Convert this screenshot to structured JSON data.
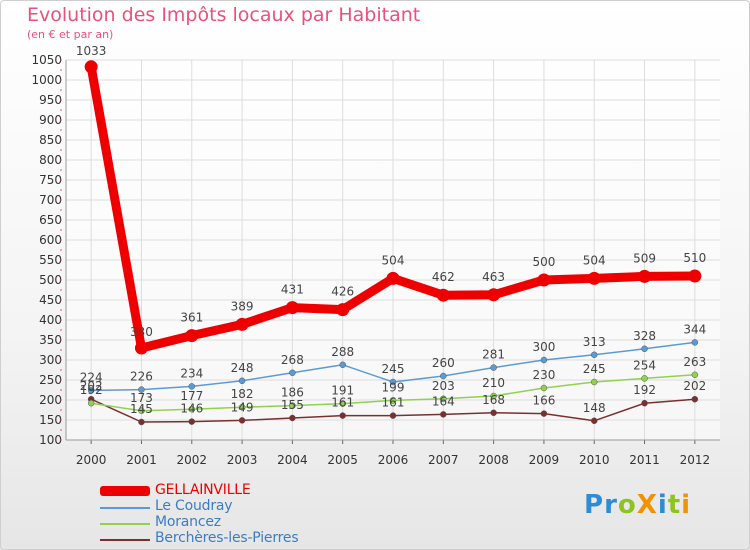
{
  "header": {
    "title": "Evolution des Impôts locaux par Habitant",
    "subtitle": "(en € et par an)"
  },
  "logo": {
    "text": "Proxiti",
    "letters": [
      {
        "ch": "P",
        "color": "#2e8bd6"
      },
      {
        "ch": "r",
        "color": "#2e8bd6"
      },
      {
        "ch": "o",
        "color": "#8fc31f"
      },
      {
        "ch": "X",
        "color": "#f39200"
      },
      {
        "ch": "i",
        "color": "#2e8bd6"
      },
      {
        "ch": "t",
        "color": "#8fc31f"
      },
      {
        "ch": "i",
        "color": "#f39200"
      }
    ]
  },
  "chart_data": {
    "type": "line",
    "title": "Evolution des Impôts locaux par Habitant",
    "subtitle": "(en € et par an)",
    "xlabel": "",
    "ylabel": "",
    "x": [
      "2000",
      "2001",
      "2002",
      "2003",
      "2004",
      "2005",
      "2006",
      "2007",
      "2008",
      "2009",
      "2010",
      "2011",
      "2012"
    ],
    "ylim": [
      100,
      1050
    ],
    "yticks": [
      100,
      150,
      200,
      250,
      300,
      350,
      400,
      450,
      500,
      550,
      600,
      650,
      700,
      750,
      800,
      850,
      900,
      950,
      1000,
      1050
    ],
    "grid": true,
    "legend_position": "bottom-left",
    "series": [
      {
        "name": "GELLAINVILLE",
        "color": "#ee0000",
        "values": [
          1033,
          330,
          361,
          389,
          431,
          426,
          504,
          462,
          463,
          500,
          504,
          509,
          510
        ]
      },
      {
        "name": "Le Coudray",
        "color": "#5b9bd5",
        "values": [
          224,
          226,
          234,
          248,
          268,
          288,
          245,
          260,
          281,
          300,
          313,
          328,
          344
        ]
      },
      {
        "name": "Morancez",
        "color": "#92d050",
        "values": [
          192,
          173,
          177,
          182,
          186,
          191,
          199,
          203,
          210,
          230,
          245,
          254,
          263
        ]
      },
      {
        "name": "Berchères-les-Pierres",
        "color": "#7b2f2f",
        "values": [
          202,
          145,
          146,
          149,
          155,
          161,
          161,
          164,
          168,
          166,
          148,
          192,
          202
        ]
      }
    ]
  }
}
